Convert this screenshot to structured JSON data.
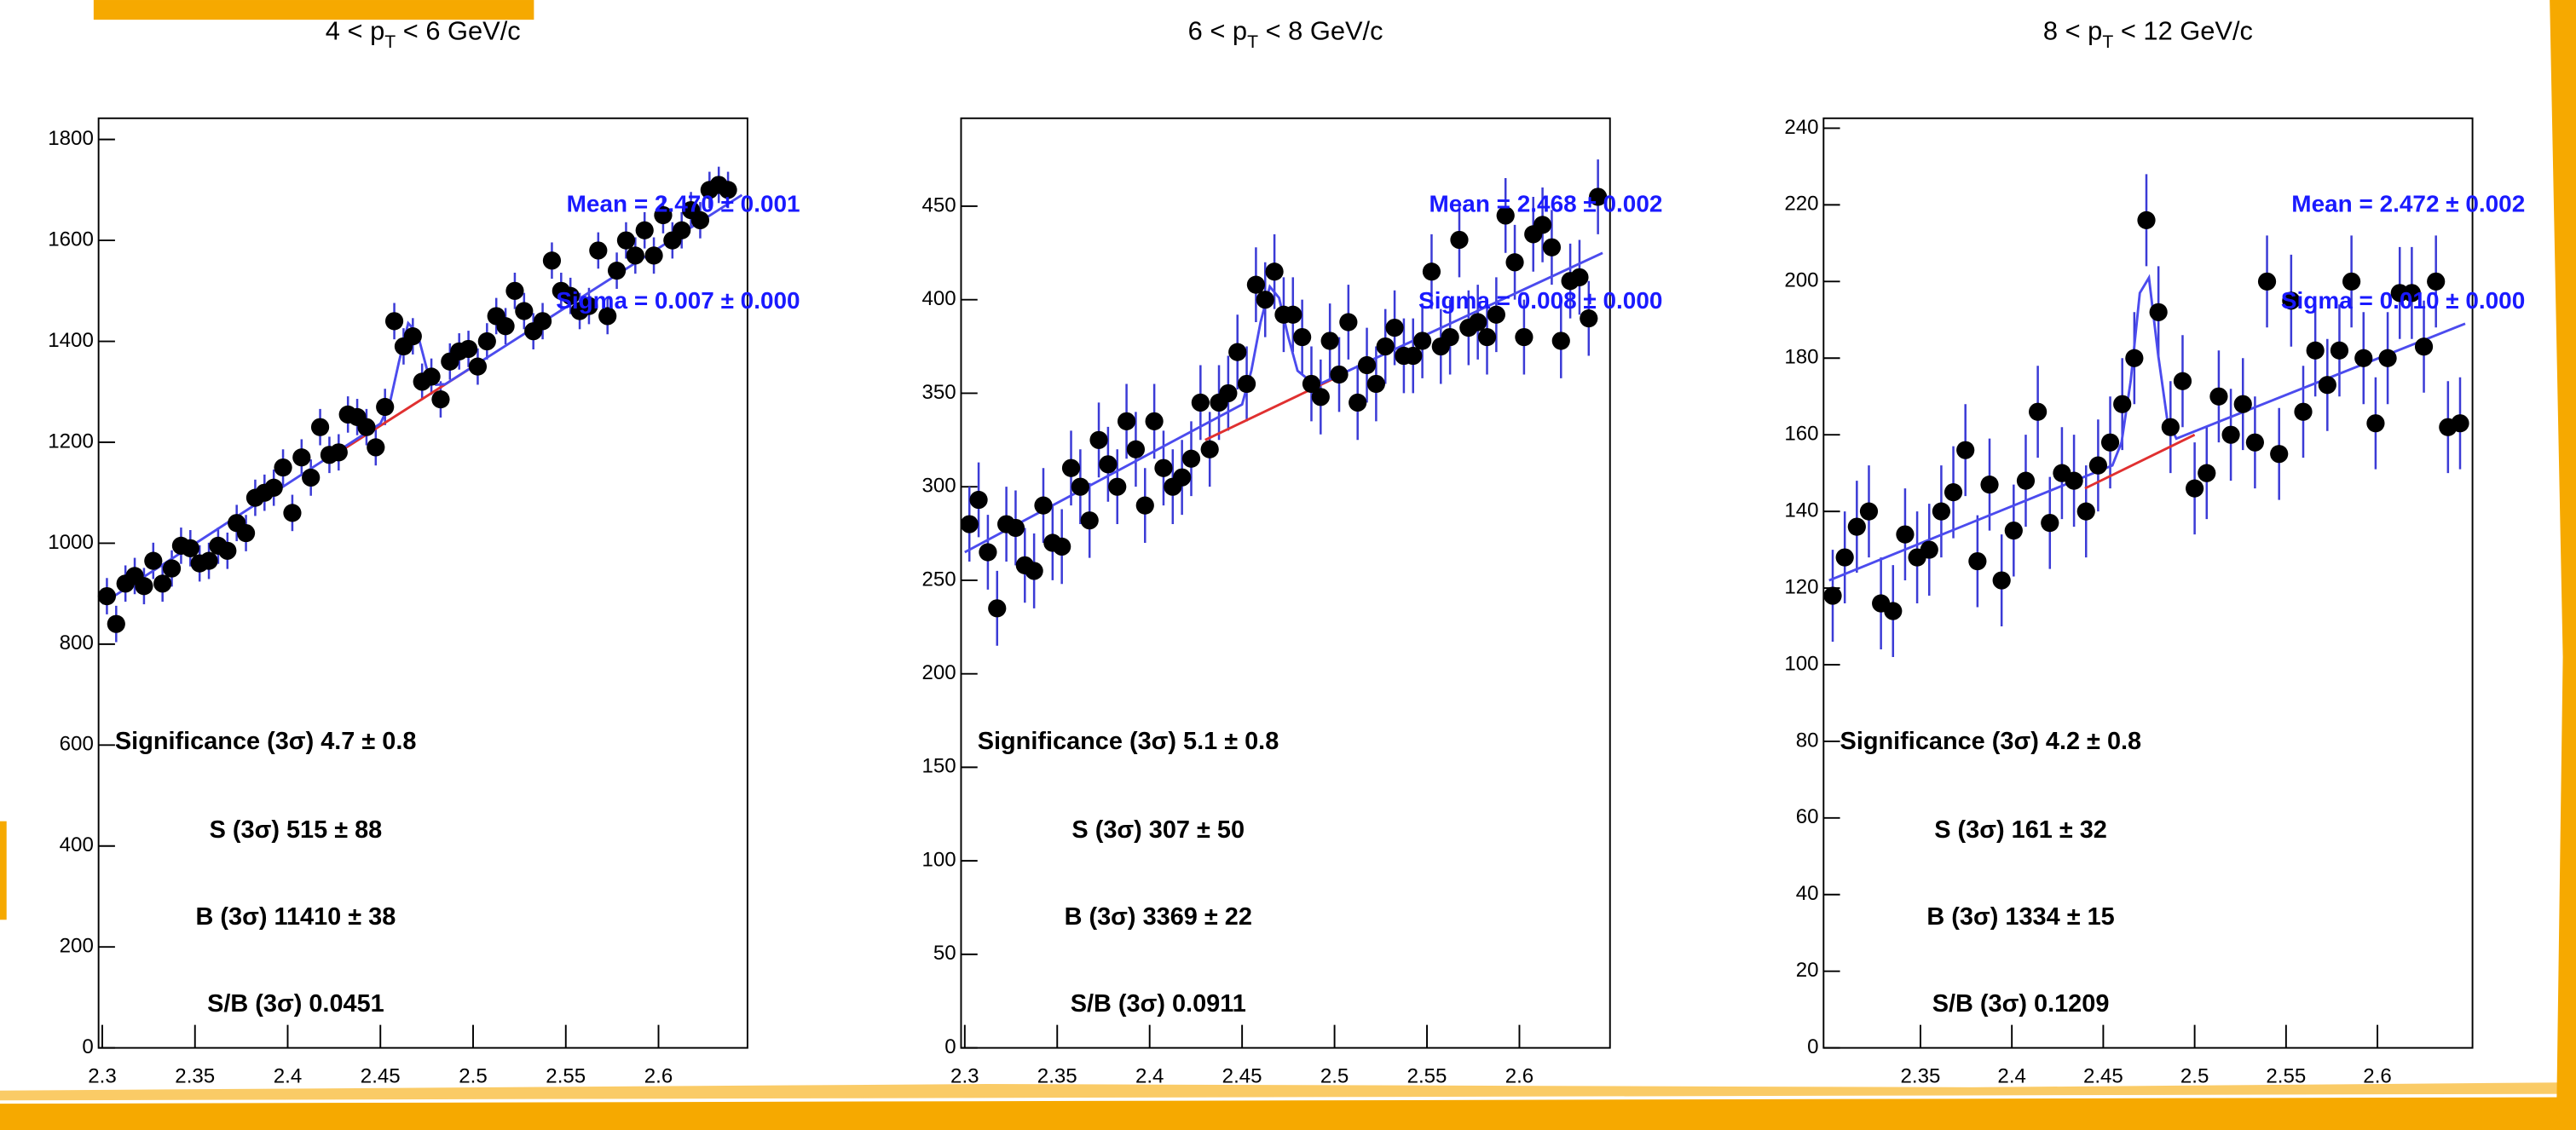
{
  "chart_data": [
    {
      "type": "scatter",
      "title": [
        "4 < p",
        "T",
        " < 6 GeV/c"
      ],
      "x": [
        2.3025,
        2.3075,
        2.3125,
        2.3175,
        2.3225,
        2.3275,
        2.3325,
        2.3375,
        2.3425,
        2.3475,
        2.3525,
        2.3575,
        2.3625,
        2.3675,
        2.3725,
        2.3775,
        2.3825,
        2.3875,
        2.3925,
        2.3975,
        2.4025,
        2.4075,
        2.4125,
        2.4175,
        2.4225,
        2.4275,
        2.4325,
        2.4375,
        2.4425,
        2.4475,
        2.4525,
        2.4575,
        2.4625,
        2.4675,
        2.4725,
        2.4775,
        2.4825,
        2.4875,
        2.4925,
        2.4975,
        2.5025,
        2.5075,
        2.5125,
        2.5175,
        2.5225,
        2.5275,
        2.5325,
        2.5375,
        2.5425,
        2.5475,
        2.5525,
        2.5575,
        2.5625,
        2.5675,
        2.5725,
        2.5775,
        2.5825,
        2.5875,
        2.5925,
        2.5975,
        2.6025,
        2.6075,
        2.6125,
        2.6175,
        2.6225,
        2.6275,
        2.6325,
        2.6375
      ],
      "values": [
        895,
        840,
        920,
        935,
        915,
        965,
        920,
        950,
        995,
        990,
        960,
        965,
        995,
        985,
        1040,
        1020,
        1090,
        1100,
        1110,
        1150,
        1060,
        1170,
        1130,
        1230,
        1175,
        1180,
        1255,
        1250,
        1230,
        1190,
        1270,
        1440,
        1390,
        1410,
        1320,
        1330,
        1285,
        1360,
        1380,
        1385,
        1350,
        1400,
        1450,
        1430,
        1500,
        1460,
        1420,
        1440,
        1560,
        1500,
        1490,
        1460,
        1470,
        1580,
        1450,
        1540,
        1600,
        1570,
        1620,
        1570,
        1650,
        1600,
        1620,
        1660,
        1640,
        1700,
        1710,
        1700
      ],
      "error": 36,
      "color": "#000000",
      "error_color": "#3b3bd6",
      "fit": {
        "color": "#4b4bee",
        "x": [
          2.3,
          2.45,
          2.455,
          2.46,
          2.465,
          2.47,
          2.475,
          2.48,
          2.485,
          2.645
        ],
        "values": [
          880,
          1237,
          1276,
          1359,
          1436,
          1416,
          1346,
          1314,
          1315,
          1690
        ]
      },
      "background": {
        "color": "#e03030",
        "x": [
          2.43,
          2.5
        ],
        "values": [
          1186,
          1350
        ]
      },
      "xlim": [
        2.298,
        2.648
      ],
      "ylim": [
        0,
        1842
      ],
      "xticks": [
        2.3,
        2.35,
        2.4,
        2.45,
        2.5,
        2.55,
        2.6
      ],
      "yticks": [
        0,
        200,
        400,
        600,
        800,
        1000,
        1200,
        1400,
        1600,
        1800
      ],
      "mean_label": "Mean = 2.470 ± 0.001",
      "sigma_label": "Sigma = 0.007 ± 0.000",
      "stats": [
        "Significance (3σ) 4.7 ± 0.8",
        "S (3σ) 515 ± 88",
        "B (3σ) 11410 ± 38",
        "S/B (3σ) 0.0451"
      ]
    },
    {
      "type": "scatter",
      "title": [
        "6 < p",
        "T",
        " < 8 GeV/c"
      ],
      "x": [
        2.3025,
        2.3075,
        2.3125,
        2.3175,
        2.3225,
        2.3275,
        2.3325,
        2.3375,
        2.3425,
        2.3475,
        2.3525,
        2.3575,
        2.3625,
        2.3675,
        2.3725,
        2.3775,
        2.3825,
        2.3875,
        2.3925,
        2.3975,
        2.4025,
        2.4075,
        2.4125,
        2.4175,
        2.4225,
        2.4275,
        2.4325,
        2.4375,
        2.4425,
        2.4475,
        2.4525,
        2.4575,
        2.4625,
        2.4675,
        2.4725,
        2.4775,
        2.4825,
        2.4875,
        2.4925,
        2.4975,
        2.5025,
        2.5075,
        2.5125,
        2.5175,
        2.5225,
        2.5275,
        2.5325,
        2.5375,
        2.5425,
        2.5475,
        2.5525,
        2.5575,
        2.5625,
        2.5675,
        2.5725,
        2.5775,
        2.5825,
        2.5875,
        2.5925,
        2.5975,
        2.6025,
        2.6075,
        2.6125,
        2.6175,
        2.6225,
        2.6275,
        2.6325,
        2.6375,
        2.6425
      ],
      "values": [
        280,
        293,
        265,
        235,
        280,
        278,
        258,
        255,
        290,
        270,
        268,
        310,
        300,
        282,
        325,
        312,
        300,
        335,
        320,
        290,
        335,
        310,
        300,
        305,
        315,
        345,
        320,
        345,
        350,
        372,
        355,
        408,
        400,
        415,
        392,
        392,
        380,
        355,
        348,
        378,
        360,
        388,
        345,
        365,
        355,
        375,
        385,
        370,
        370,
        378,
        415,
        375,
        380,
        432,
        385,
        388,
        380,
        392,
        445,
        420,
        380,
        435,
        440,
        428,
        378,
        410,
        412,
        390,
        455
      ],
      "error": 20,
      "color": "#000000",
      "error_color": "#3b3bd6",
      "fit": {
        "color": "#4b4bee",
        "x": [
          2.3,
          2.45,
          2.455,
          2.46,
          2.465,
          2.47,
          2.475,
          2.48,
          2.49,
          2.645
        ],
        "values": [
          265,
          344,
          362,
          388,
          407,
          401,
          380,
          362,
          354,
          425
        ]
      },
      "background": {
        "color": "#e03030",
        "x": [
          2.43,
          2.5
        ],
        "values": [
          325,
          358
        ]
      },
      "xlim": [
        2.298,
        2.649
      ],
      "ylim": [
        0,
        497
      ],
      "xticks": [
        2.3,
        2.35,
        2.4,
        2.45,
        2.5,
        2.55,
        2.6
      ],
      "yticks": [
        0,
        50,
        100,
        150,
        200,
        250,
        300,
        350,
        400,
        450
      ],
      "mean_label": "Mean = 2.468 ± 0.002",
      "sigma_label": "Sigma = 0.008 ± 0.000",
      "stats": [
        "Significance (3σ) 5.1 ± 0.8",
        "S (3σ) 307 ± 50",
        "B (3σ) 3369 ± 22",
        "S/B (3σ) 0.0911"
      ]
    },
    {
      "type": "scatter",
      "title": [
        "8 < p",
        "T",
        " < 12 GeV/c"
      ],
      "x": [
        2.302,
        2.3086,
        2.3152,
        2.3218,
        2.3284,
        2.335,
        2.3416,
        2.3482,
        2.3548,
        2.3614,
        2.368,
        2.3746,
        2.3812,
        2.3878,
        2.3944,
        2.401,
        2.4076,
        2.4142,
        2.4208,
        2.4274,
        2.434,
        2.4406,
        2.4472,
        2.4538,
        2.4604,
        2.467,
        2.4736,
        2.4802,
        2.4868,
        2.4934,
        2.5,
        2.5066,
        2.5132,
        2.5198,
        2.5264,
        2.533,
        2.5396,
        2.5462,
        2.5528,
        2.5594,
        2.566,
        2.5726,
        2.5792,
        2.5858,
        2.5924,
        2.599,
        2.6056,
        2.6122,
        2.6188,
        2.6254,
        2.632,
        2.6386,
        2.6452
      ],
      "values": [
        118,
        128,
        136,
        140,
        116,
        114,
        134,
        128,
        130,
        140,
        145,
        156,
        127,
        147,
        122,
        135,
        148,
        166,
        137,
        150,
        148,
        140,
        152,
        158,
        168,
        180,
        216,
        192,
        162,
        174,
        146,
        150,
        170,
        160,
        168,
        158,
        200,
        155,
        195,
        166,
        182,
        173,
        182,
        200,
        180,
        163,
        180,
        197,
        197,
        183,
        200,
        162,
        163
      ],
      "error": 12,
      "color": "#000000",
      "error_color": "#3b3bd6",
      "fit": {
        "color": "#4b4bee",
        "x": [
          2.3,
          2.455,
          2.46,
          2.465,
          2.47,
          2.475,
          2.48,
          2.485,
          2.49,
          2.648
        ],
        "values": [
          122,
          152,
          158,
          174,
          197,
          201,
          181,
          164,
          159,
          189
        ]
      },
      "background": {
        "color": "#e03030",
        "x": [
          2.44,
          2.5
        ],
        "values": [
          146,
          160
        ]
      },
      "xlim": [
        2.297,
        2.652
      ],
      "ylim": [
        0,
        242.6
      ],
      "xticks": [
        2.35,
        2.4,
        2.45,
        2.5,
        2.55,
        2.6
      ],
      "yticks": [
        0,
        20,
        40,
        60,
        80,
        100,
        120,
        140,
        160,
        180,
        200,
        220,
        240
      ],
      "mean_label": "Mean = 2.472 ± 0.002",
      "sigma_label": "Sigma = 0.010 ± 0.000",
      "stats": [
        "Significance (3σ) 4.2 ± 0.8",
        "S (3σ) 161 ± 32",
        "B (3σ) 1334 ± 15",
        "S/B (3σ) 0.1209"
      ]
    }
  ]
}
